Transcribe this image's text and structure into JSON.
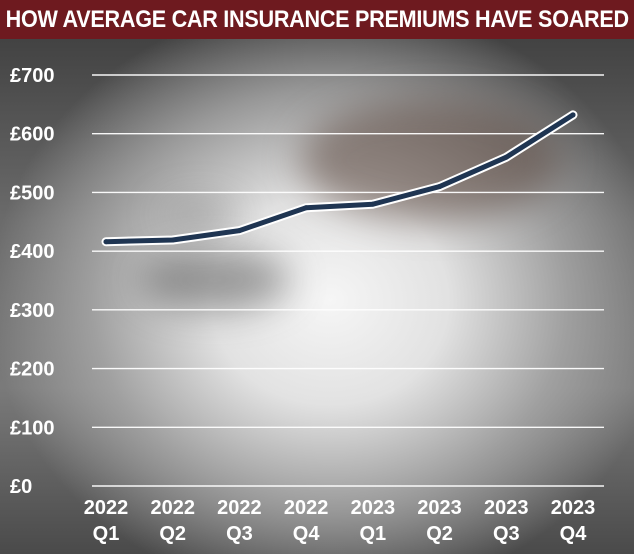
{
  "title": "HOW AVERAGE CAR INSURANCE PREMIUMS HAVE SOARED",
  "colors": {
    "title_bg": "#6e1a1f",
    "line_outer": "#ffffff",
    "line_inner": "#1f3552",
    "grid": "#ffffff",
    "text": "#ffffff"
  },
  "chart_data": {
    "type": "line",
    "title": "HOW AVERAGE CAR INSURANCE PREMIUMS HAVE SOARED",
    "xlabel": "",
    "ylabel": "",
    "categories": [
      [
        "2022",
        "Q1"
      ],
      [
        "2022",
        "Q2"
      ],
      [
        "2022",
        "Q3"
      ],
      [
        "2022",
        "Q4"
      ],
      [
        "2023",
        "Q1"
      ],
      [
        "2023",
        "Q2"
      ],
      [
        "2023",
        "Q3"
      ],
      [
        "2023",
        "Q4"
      ]
    ],
    "series": [
      {
        "values": [
          416,
          419,
          435,
          474,
          480,
          510,
          560,
          632
        ]
      }
    ],
    "ylim": [
      0,
      700
    ],
    "yticks": [
      0,
      100,
      200,
      300,
      400,
      500,
      600,
      700
    ],
    "ytick_labels": [
      "£0",
      "£100",
      "£200",
      "£300",
      "£400",
      "£500",
      "£600",
      "£700"
    ],
    "grid": true,
    "legend": "none"
  }
}
